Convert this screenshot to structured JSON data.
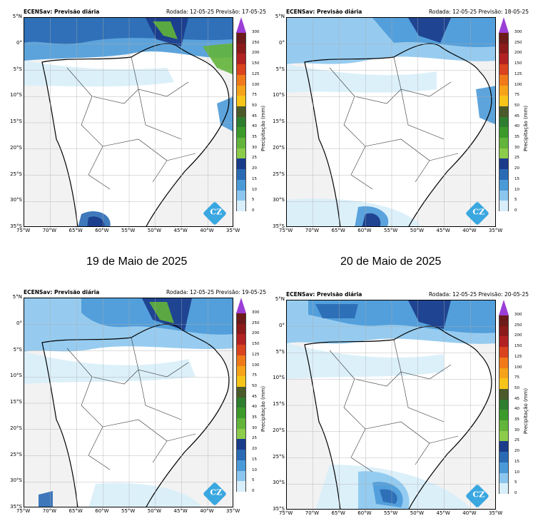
{
  "panels": [
    {
      "model": "ECENSav: Previsão diária",
      "run": "Rodada: 12-05-25 Previsão: 17-05-25"
    },
    {
      "model": "ECENSav: Previsão diária",
      "run": "Rodada: 12-05-25 Previsão: 18-05-25"
    },
    {
      "model": "ECENSav: Previsão diária",
      "run": "Rodada: 12-05-25 Previsão: 19-05-25"
    },
    {
      "model": "ECENSav: Previsão diária",
      "run": "Rodada: 12-05-25 Previsão: 20-05-25"
    }
  ],
  "captions": [
    "19 de Maio de 2025",
    "20 de Maio de 2025"
  ],
  "ylabels": [
    "5°N",
    "0°",
    "5°S",
    "10°S",
    "15°S",
    "20°S",
    "25°S",
    "30°S",
    "35°S"
  ],
  "xlabels": [
    "75°W",
    "70°W",
    "65°W",
    "60°W",
    "55°W",
    "50°W",
    "45°W",
    "40°W",
    "35°W"
  ],
  "colorbar": {
    "label": "Precipitação (mm)",
    "ticks": [
      "300",
      "250",
      "200",
      "150",
      "125",
      "100",
      "75",
      "50",
      "45",
      "40",
      "35",
      "30",
      "25",
      "20",
      "15",
      "10",
      "5",
      "0"
    ],
    "colors": [
      "#9b3ed6",
      "#6d1a1a",
      "#8b1a1a",
      "#b22222",
      "#d9441e",
      "#f07a1a",
      "#f5a31a",
      "#f7c51a",
      "#4a5a2a",
      "#2f7d2f",
      "#3c9a2a",
      "#62b43a",
      "#8ccc4a",
      "#1a3a8a",
      "#2a6ab4",
      "#4b9ad8",
      "#8cc6ee",
      "#d8eefa",
      "#ffffff"
    ]
  },
  "logo": "CZ"
}
